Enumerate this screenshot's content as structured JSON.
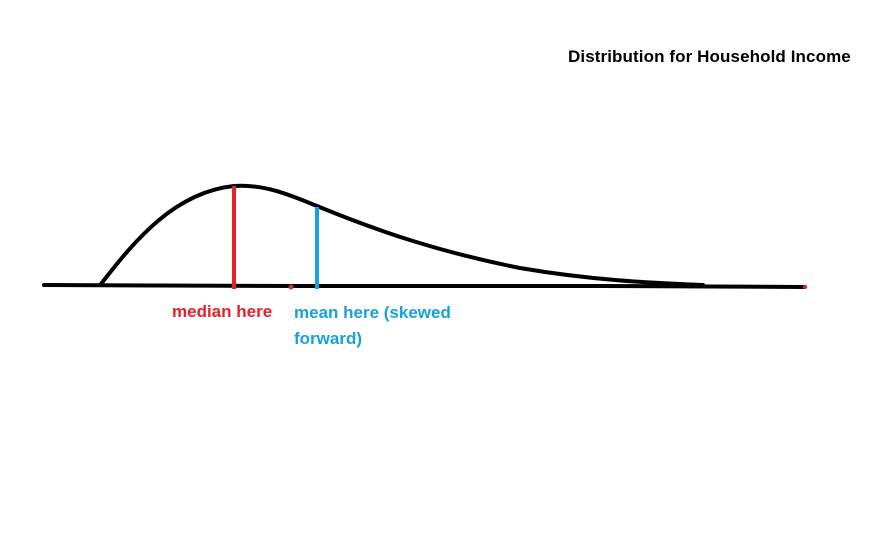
{
  "title": "Distribution for Household Income",
  "labels": {
    "median": "median here",
    "mean": "mean here (skewed forward)"
  },
  "colors": {
    "curve": "#000000",
    "median": "#e8202a",
    "mean": "#1aa0db"
  }
}
